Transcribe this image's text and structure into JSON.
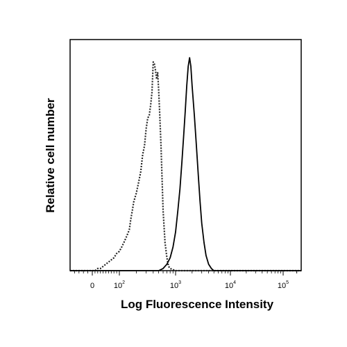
{
  "chart_data": {
    "type": "line",
    "title": "",
    "xlabel": "Log Fluorescence Intensity",
    "ylabel": "Relative cell number",
    "x_scale": "logicle",
    "x_ticks": [
      {
        "value": 0,
        "base": "0",
        "exp": ""
      },
      {
        "value": 100,
        "base": "10",
        "exp": "2"
      },
      {
        "value": 1000,
        "base": "10",
        "exp": "3"
      },
      {
        "value": 10000,
        "base": "10",
        "exp": "4"
      },
      {
        "value": 100000,
        "base": "10",
        "exp": "5"
      }
    ],
    "xlim": [
      -50,
      250000
    ],
    "ylim": [
      0,
      100
    ],
    "grid": false,
    "legend": "none",
    "series": [
      {
        "style": "dotted",
        "color": "#222222",
        "x": [
          -50,
          -20,
          0,
          10,
          20,
          30,
          40,
          50,
          60,
          70,
          80,
          90,
          100,
          110,
          120,
          130,
          140,
          150,
          160,
          170,
          180,
          200,
          220,
          240,
          250,
          260,
          280,
          300,
          320,
          340,
          360,
          380,
          400,
          420,
          440,
          460,
          480,
          500,
          520,
          550,
          580,
          600,
          650,
          700,
          750,
          800,
          1000,
          2000,
          10000,
          250000
        ],
        "y": [
          0,
          0,
          0,
          0,
          1,
          1,
          2,
          3,
          4,
          5,
          6,
          8,
          9,
          11,
          13,
          15,
          17,
          19,
          24,
          28,
          32,
          36,
          41,
          46,
          50,
          54,
          58,
          66,
          71,
          72,
          77,
          83,
          97,
          96,
          93,
          89,
          92,
          84,
          74,
          58,
          40,
          28,
          13,
          6,
          2,
          1,
          0,
          0,
          0,
          0
        ]
      },
      {
        "style": "solid",
        "color": "#000000",
        "x": [
          -50,
          0,
          100,
          400,
          500,
          600,
          700,
          800,
          900,
          1000,
          1100,
          1200,
          1300,
          1400,
          1500,
          1600,
          1700,
          1800,
          1900,
          2000,
          2200,
          2400,
          2600,
          2800,
          3000,
          3300,
          3600,
          4000,
          4500,
          5000,
          6000,
          8000,
          250000
        ],
        "y": [
          0,
          0,
          0,
          0,
          0,
          1,
          3,
          6,
          11,
          18,
          28,
          38,
          50,
          62,
          74,
          86,
          95,
          99,
          95,
          86,
          72,
          58,
          44,
          32,
          22,
          13,
          7,
          3,
          1,
          0,
          0,
          0,
          0
        ]
      }
    ]
  }
}
